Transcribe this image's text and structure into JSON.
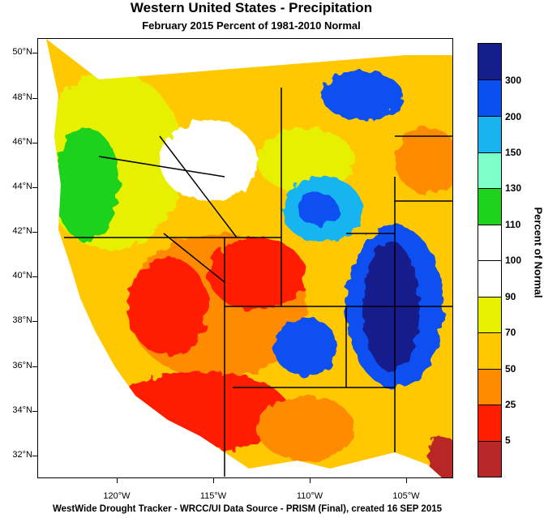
{
  "title": "Western United States - Precipitation",
  "subtitle": "February 2015  Percent of 1981-2010 Normal",
  "footer": "WestWide Drought Tracker - WRCC/UI  Data Source - PRISM (Final), created 16 SEP 2015",
  "lat_labels": [
    "50°N",
    "48°N",
    "46°N",
    "44°N",
    "42°N",
    "40°N",
    "38°N",
    "36°N",
    "34°N",
    "32°N"
  ],
  "lon_labels": [
    "120°W",
    "115°W",
    "110°W",
    "105°W"
  ],
  "legend": {
    "title": "Percent of Normal",
    "labels": [
      "300",
      "200",
      "150",
      "130",
      "110",
      "100",
      "90",
      "70",
      "50",
      "25",
      "5"
    ],
    "colors": [
      "#141e8c",
      "#0a4ff0",
      "#19b4f0",
      "#7dffc8",
      "#1ed21e",
      "#ffffff",
      "#ffffff",
      "#e6f000",
      "#ffc800",
      "#ff8c00",
      "#ff1e00",
      "#b92828"
    ]
  },
  "map": {
    "regions": [
      {
        "name": "northwest-coast",
        "color": "#1ed21e"
      },
      {
        "name": "great-basin",
        "color": "#ff1e00"
      },
      {
        "name": "southwest",
        "color": "#ff8c00"
      },
      {
        "name": "rockies",
        "color": "#0a4ff0"
      },
      {
        "name": "high-plains",
        "color": "#141e8c"
      },
      {
        "name": "interior",
        "color": "#e6f000"
      }
    ]
  }
}
